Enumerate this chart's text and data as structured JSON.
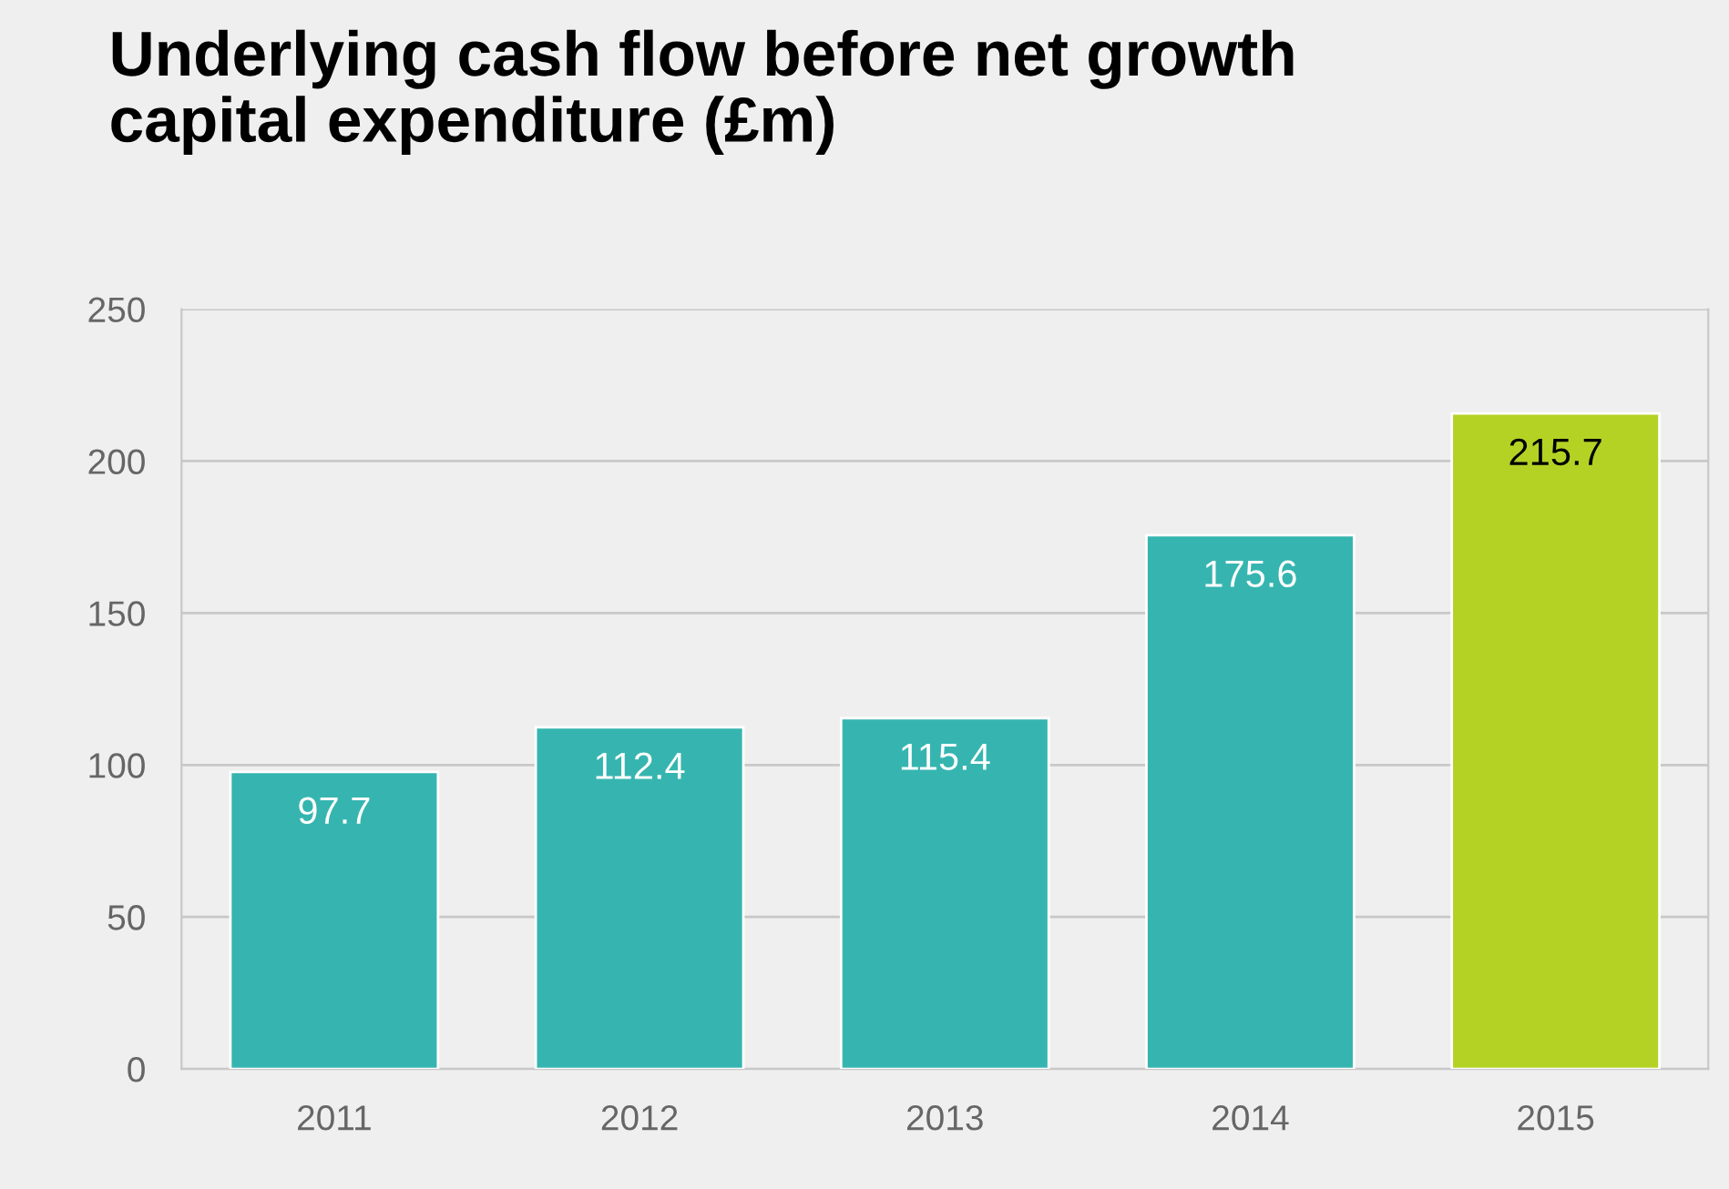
{
  "chart_data": {
    "type": "bar",
    "title": "Underlying cash flow before net growth\ncapital expenditure (£m)",
    "categories": [
      "2011",
      "2012",
      "2013",
      "2014",
      "2015"
    ],
    "values": [
      97.7,
      112.4,
      115.4,
      175.6,
      215.7
    ],
    "colors": [
      "#36b5b0",
      "#36b5b0",
      "#36b5b0",
      "#36b5b0",
      "#b4d224"
    ],
    "ylim": [
      0,
      250
    ],
    "yticks": [
      0,
      50,
      100,
      150,
      200,
      250
    ],
    "grid": "y",
    "data_labels": true
  }
}
